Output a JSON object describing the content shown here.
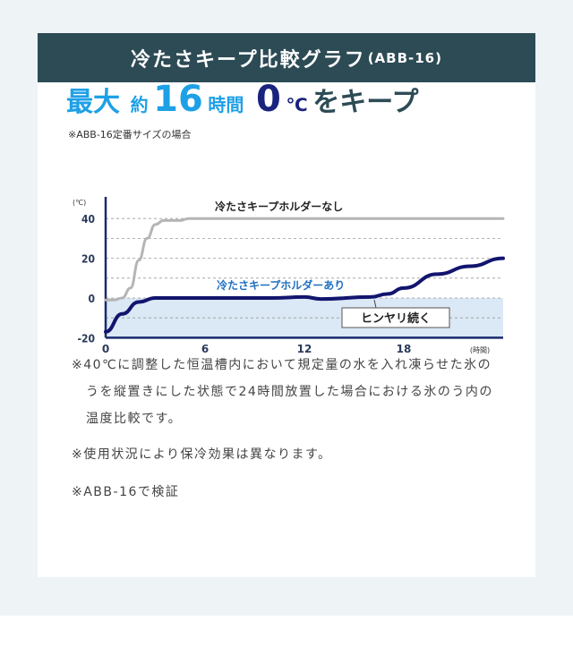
{
  "header": {
    "title": "冷たさキープ比較グラフ",
    "model": "(ABB-16)"
  },
  "headline": {
    "part1": "最大",
    "part2": "約",
    "part3": "16",
    "part4": "時間",
    "part5": "0",
    "part6": "℃",
    "part7": "をキープ"
  },
  "subnote": "※ABB-16定番サイズの場合",
  "colors": {
    "header": "#2d4b55",
    "accent_light": "#1ea0e6",
    "accent_dark": "#1a237e",
    "without": "#b5b5b5",
    "with": "#12156e",
    "cool_zone": "#dbe8f5"
  },
  "chart_data": {
    "type": "line",
    "yunit": "(℃)",
    "xunit": "(時間)",
    "xlim": [
      0,
      24
    ],
    "ylim": [
      -20,
      45
    ],
    "xticks": [
      "0",
      "6",
      "12",
      "18"
    ],
    "yticks": [
      "40",
      "20",
      "0",
      "-20"
    ],
    "grid": "dashed horizontal every 10",
    "series": [
      {
        "name": "冷たさキープホルダーなし",
        "x": [
          0,
          0.5,
          1,
          1.5,
          2,
          2.5,
          3,
          3.5,
          4.5,
          5,
          24
        ],
        "y": [
          -1,
          -1,
          0,
          5,
          19,
          30,
          37,
          39,
          39,
          40,
          40
        ]
      },
      {
        "name": "冷たさキープホルダーあり",
        "x": [
          0,
          1,
          2,
          3,
          6,
          10,
          12,
          13,
          16,
          17,
          18,
          20,
          22,
          24
        ],
        "y": [
          -17,
          -8,
          -2,
          0,
          0,
          0,
          0.5,
          -0.5,
          0.5,
          2,
          5,
          12,
          16,
          20
        ]
      }
    ],
    "annotation": "ヒンヤリ続く"
  },
  "notes": [
    "※40℃に調整した恒温槽内において規定量の水を入れ凍らせた氷のうを縦置きにした状態で24時間放置した場合における氷のう内の温度比較です。",
    "※使用状況により保冷効果は異なります。",
    "※ABB-16で検証"
  ]
}
